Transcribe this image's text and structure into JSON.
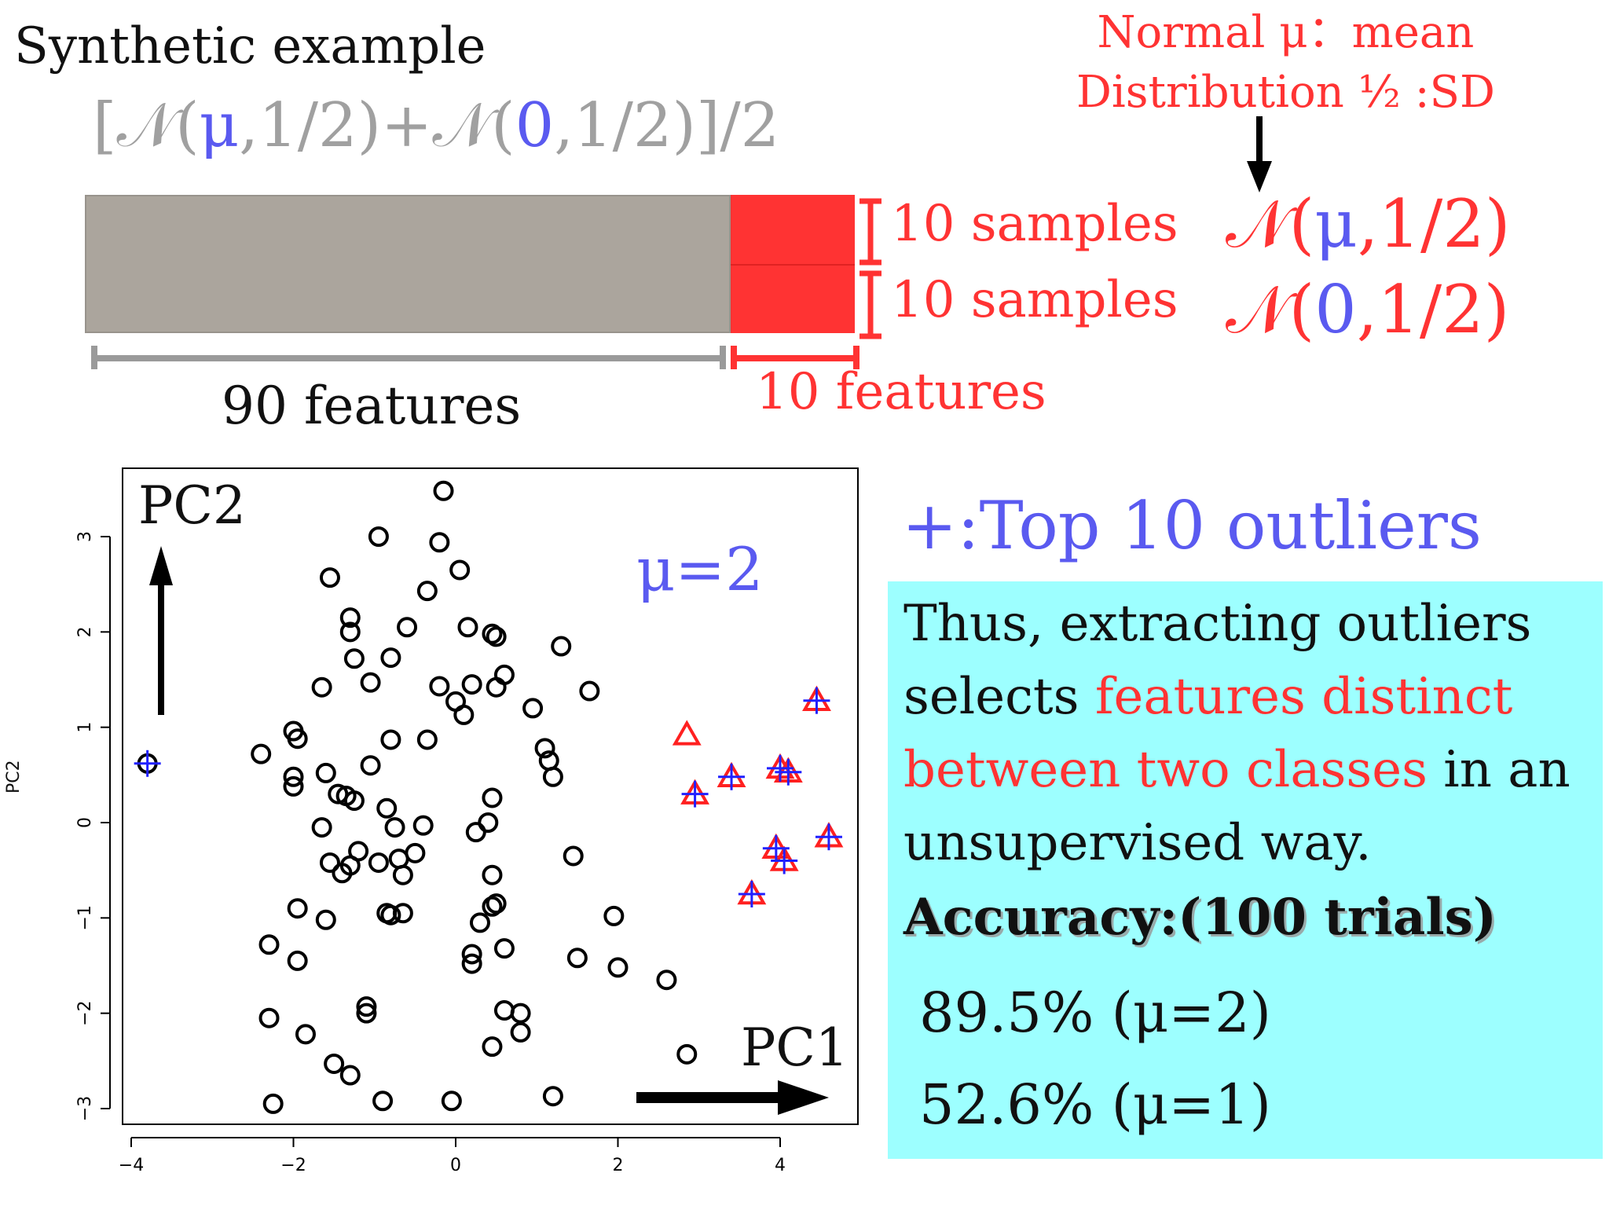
{
  "header": {
    "title": "Synthetic example",
    "formula": {
      "open": "[",
      "n1": "𝒩(",
      "mu": "μ",
      "rest1": ",1/2)+",
      "n2": "𝒩(",
      "zero": "0",
      "rest2": ",1/2)]/2"
    }
  },
  "note": {
    "line1": "Normal μ：mean",
    "line2": "Distribution ½ :SD"
  },
  "matrix": {
    "samples_top": "10 samples",
    "samples_bottom": "10 samples",
    "features_gray": "90 features",
    "features_red": "10 features",
    "dist_top": {
      "prefix": "𝒩(",
      "mu": "μ",
      "suffix": ",1/2)"
    },
    "dist_bottom": {
      "prefix": "𝒩(",
      "zero": "0",
      "suffix": ",1/2)"
    },
    "colors": {
      "gray_block": "#aba59d",
      "red_block": "#ff3333",
      "gray_bracket": "#9a9a9a",
      "red_bracket": "#ff3333"
    }
  },
  "plot": {
    "pc2_label": "PC2",
    "pc1_label": "PC1",
    "mu_label": "μ=2",
    "y_axis_title": "PC2"
  },
  "legend": {
    "outliers": "+:Top 10 outliers"
  },
  "box": {
    "line1": "Thus, extracting outliers",
    "line2_pre": "selects ",
    "line2_red": "features distinct",
    "line3_red": "between two classes",
    "line3_post": " in an",
    "line4": "unsupervised way.",
    "line5": "Accuracy:(100 trials)",
    "line6_num": "89.5%",
    "line6_mu": " (μ=2)",
    "line7_num": "52.6%",
    "line7_mu": " (μ=1)",
    "background": "#9dffff"
  },
  "chart_data": {
    "type": "scatter",
    "xlim": [
      -4.2,
      4.8
    ],
    "ylim": [
      -3.2,
      3.6
    ],
    "x_ticks": [
      -4,
      -2,
      0,
      2,
      4
    ],
    "y_ticks": [
      -3,
      -2,
      -1,
      0,
      1,
      2,
      3
    ],
    "x_tick_labels": [
      "−4",
      "−2",
      "0",
      "2",
      "4"
    ],
    "y_tick_labels": [
      "−3",
      "−2",
      "−1",
      "0",
      "1",
      "2",
      "3"
    ],
    "series": [
      {
        "marker": "circle",
        "color": "#000000",
        "points": [
          [
            -3.8,
            0.62
          ],
          [
            -2.4,
            0.72
          ],
          [
            -2.0,
            0.96
          ],
          [
            -1.95,
            0.88
          ],
          [
            -2.0,
            0.48
          ],
          [
            -2.0,
            0.38
          ],
          [
            -1.65,
            1.42
          ],
          [
            -1.55,
            2.57
          ],
          [
            -1.3,
            2.15
          ],
          [
            -1.3,
            2.0
          ],
          [
            -1.25,
            1.72
          ],
          [
            -1.05,
            1.47
          ],
          [
            -0.95,
            3.0
          ],
          [
            -0.8,
            1.73
          ],
          [
            -0.6,
            2.05
          ],
          [
            -0.35,
            2.43
          ],
          [
            -0.2,
            2.94
          ],
          [
            -0.15,
            3.48
          ],
          [
            0.05,
            2.65
          ],
          [
            -0.2,
            1.43
          ],
          [
            0.0,
            1.27
          ],
          [
            0.1,
            1.13
          ],
          [
            0.15,
            2.05
          ],
          [
            0.2,
            1.45
          ],
          [
            0.45,
            1.98
          ],
          [
            0.5,
            1.95
          ],
          [
            0.5,
            1.42
          ],
          [
            0.6,
            1.55
          ],
          [
            0.95,
            1.2
          ],
          [
            1.1,
            0.78
          ],
          [
            1.15,
            0.65
          ],
          [
            1.2,
            0.48
          ],
          [
            1.3,
            1.85
          ],
          [
            1.65,
            1.38
          ],
          [
            -0.8,
            0.87
          ],
          [
            -1.05,
            0.6
          ],
          [
            -1.6,
            0.52
          ],
          [
            -0.35,
            0.87
          ],
          [
            -1.45,
            0.3
          ],
          [
            -1.35,
            0.28
          ],
          [
            -1.25,
            0.23
          ],
          [
            -0.85,
            0.15
          ],
          [
            -1.65,
            -0.05
          ],
          [
            -0.75,
            -0.05
          ],
          [
            -0.4,
            -0.03
          ],
          [
            -1.55,
            -0.42
          ],
          [
            -1.4,
            -0.53
          ],
          [
            -1.3,
            -0.45
          ],
          [
            -1.2,
            -0.3
          ],
          [
            -0.95,
            -0.42
          ],
          [
            -0.7,
            -0.38
          ],
          [
            -0.65,
            -0.55
          ],
          [
            -0.5,
            -0.32
          ],
          [
            0.25,
            -0.1
          ],
          [
            0.4,
            0.0
          ],
          [
            0.45,
            0.26
          ],
          [
            0.45,
            -0.55
          ],
          [
            0.5,
            -0.85
          ],
          [
            0.45,
            -0.88
          ],
          [
            0.3,
            -1.05
          ],
          [
            -1.95,
            -0.9
          ],
          [
            -1.6,
            -1.02
          ],
          [
            -0.85,
            -0.95
          ],
          [
            -0.8,
            -0.97
          ],
          [
            -0.65,
            -0.95
          ],
          [
            -2.3,
            -1.28
          ],
          [
            -1.95,
            -1.45
          ],
          [
            0.2,
            -1.38
          ],
          [
            0.2,
            -1.48
          ],
          [
            0.6,
            -1.32
          ],
          [
            1.45,
            -0.35
          ],
          [
            1.5,
            -1.42
          ],
          [
            1.95,
            -0.98
          ],
          [
            2.0,
            -1.52
          ],
          [
            2.6,
            -1.65
          ],
          [
            -1.1,
            -1.93
          ],
          [
            -1.1,
            -2.0
          ],
          [
            -2.3,
            -2.05
          ],
          [
            -1.85,
            -2.22
          ],
          [
            -1.5,
            -2.53
          ],
          [
            -1.3,
            -2.65
          ],
          [
            0.6,
            -1.97
          ],
          [
            0.8,
            -2.0
          ],
          [
            0.8,
            -2.2
          ],
          [
            0.45,
            -2.35
          ],
          [
            1.2,
            -2.87
          ],
          [
            -0.9,
            -2.92
          ],
          [
            -2.25,
            -2.95
          ],
          [
            -0.05,
            -2.92
          ],
          [
            2.85,
            -2.43
          ]
        ]
      },
      {
        "marker": "triangle",
        "color": "#ff2020",
        "points": [
          [
            2.85,
            0.92
          ],
          [
            2.95,
            0.3
          ],
          [
            3.4,
            0.48
          ],
          [
            3.65,
            -0.75
          ],
          [
            3.95,
            -0.27
          ],
          [
            4.05,
            -0.4
          ],
          [
            4.0,
            0.57
          ],
          [
            4.1,
            0.53
          ],
          [
            4.45,
            1.28
          ],
          [
            4.6,
            -0.15
          ]
        ]
      },
      {
        "marker": "plus",
        "color": "#2020ff",
        "points": [
          [
            -3.8,
            0.62
          ],
          [
            2.95,
            0.3
          ],
          [
            3.4,
            0.48
          ],
          [
            3.65,
            -0.75
          ],
          [
            3.95,
            -0.27
          ],
          [
            4.05,
            -0.4
          ],
          [
            4.0,
            0.57
          ],
          [
            4.1,
            0.53
          ],
          [
            4.45,
            1.28
          ],
          [
            4.6,
            -0.15
          ]
        ]
      }
    ]
  }
}
